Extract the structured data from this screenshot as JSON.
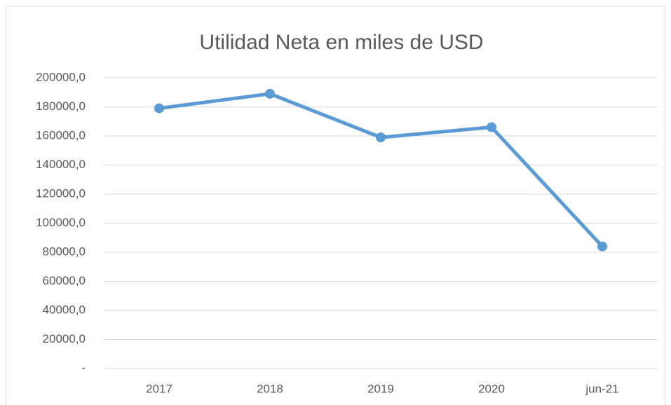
{
  "chart_data": {
    "type": "line",
    "title": "Utilidad Neta en miles de USD",
    "categories": [
      "2017",
      "2018",
      "2019",
      "2020",
      "jun-21"
    ],
    "series": [
      {
        "color": "#5b9bd5",
        "values": [
          179000,
          189000,
          159000,
          166000,
          84000
        ]
      }
    ],
    "ylim": [
      0,
      200000
    ],
    "yticks": [
      {
        "value": 0,
        "label": "-"
      },
      {
        "value": 20000,
        "label": "20000,0"
      },
      {
        "value": 40000,
        "label": "40000,0"
      },
      {
        "value": 60000,
        "label": "60000,0"
      },
      {
        "value": 80000,
        "label": "80000,0"
      },
      {
        "value": 100000,
        "label": "100000,0"
      },
      {
        "value": 120000,
        "label": "120000,0"
      },
      {
        "value": 140000,
        "label": "140000,0"
      },
      {
        "value": 160000,
        "label": "160000,0"
      },
      {
        "value": 180000,
        "label": "180000,0"
      },
      {
        "value": 200000,
        "label": "200000,0"
      }
    ],
    "grid": true
  }
}
